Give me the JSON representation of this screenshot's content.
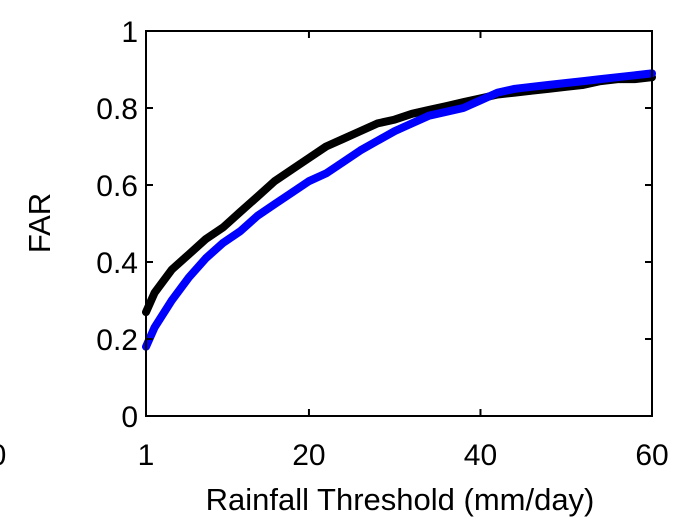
{
  "chart_data": {
    "type": "line",
    "title": "",
    "xlabel": "Rainfall Threshold (mm/day)",
    "ylabel": "FAR",
    "xlim": [
      1,
      60
    ],
    "ylim": [
      0,
      1
    ],
    "x_tick_labels": [
      "20",
      "40",
      "60"
    ],
    "x_tick_values": [
      20,
      40,
      60
    ],
    "x_min_label": "1",
    "clipped_left_label": "0",
    "y_tick_labels": [
      "0",
      "0.2",
      "0.4",
      "0.6",
      "0.8",
      "1"
    ],
    "y_tick_values": [
      0,
      0.2,
      0.4,
      0.6,
      0.8,
      1
    ],
    "grid": false,
    "legend": "none",
    "x": [
      1,
      2,
      4,
      6,
      8,
      10,
      12,
      14,
      16,
      18,
      20,
      22,
      24,
      26,
      28,
      30,
      32,
      34,
      36,
      38,
      40,
      42,
      44,
      46,
      48,
      50,
      52,
      54,
      56,
      58,
      60
    ],
    "series": [
      {
        "color": "#000000",
        "values": [
          0.27,
          0.32,
          0.38,
          0.42,
          0.46,
          0.49,
          0.53,
          0.57,
          0.61,
          0.64,
          0.67,
          0.7,
          0.72,
          0.74,
          0.76,
          0.77,
          0.785,
          0.795,
          0.805,
          0.815,
          0.825,
          0.835,
          0.84,
          0.845,
          0.85,
          0.855,
          0.86,
          0.87,
          0.875,
          0.875,
          0.88
        ]
      },
      {
        "color": "#0000ff",
        "values": [
          0.18,
          0.23,
          0.3,
          0.36,
          0.41,
          0.45,
          0.48,
          0.52,
          0.55,
          0.58,
          0.61,
          0.63,
          0.66,
          0.69,
          0.715,
          0.74,
          0.76,
          0.78,
          0.79,
          0.8,
          0.82,
          0.84,
          0.85,
          0.855,
          0.86,
          0.865,
          0.87,
          0.875,
          0.88,
          0.885,
          0.89
        ]
      }
    ]
  }
}
